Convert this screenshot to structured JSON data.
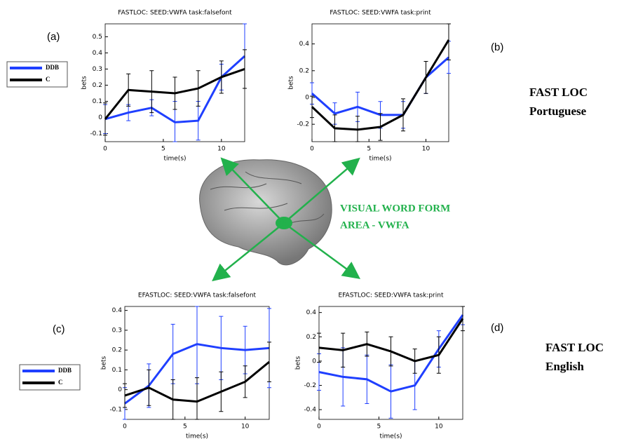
{
  "chart_data": [
    {
      "type": "line",
      "title": "FASTLOC: SEED:VWFA task:falsefont",
      "xlabel": "time(s)",
      "ylabel": "bets",
      "x": [
        0,
        2,
        4,
        6,
        8,
        10,
        12
      ],
      "xlim": [
        0,
        12
      ],
      "xticks": [
        0,
        5,
        10
      ],
      "ylim": [
        -0.15,
        0.58
      ],
      "yticks": [
        -0.1,
        0,
        0.1,
        0.2,
        0.3,
        0.4,
        0.5
      ],
      "series": [
        {
          "name": "DDB",
          "color": "#1f3fff",
          "values": [
            -0.01,
            0.03,
            0.06,
            -0.03,
            -0.02,
            0.25,
            0.38
          ],
          "errors": [
            0.09,
            0.05,
            0.05,
            0.13,
            0.12,
            0.08,
            0.2
          ]
        },
        {
          "name": "C",
          "color": "#000000",
          "values": [
            -0.01,
            0.17,
            0.16,
            0.15,
            0.18,
            0.25,
            0.3
          ],
          "errors": [
            0.1,
            0.1,
            0.13,
            0.1,
            0.11,
            0.1,
            0.12
          ]
        }
      ]
    },
    {
      "type": "line",
      "title": "FASTLOC: SEED:VWFA task:print",
      "xlabel": "time(s)",
      "ylabel": "bets",
      "x": [
        0,
        2,
        4,
        6,
        8,
        10,
        12
      ],
      "xlim": [
        0,
        12
      ],
      "xticks": [
        0,
        5,
        10
      ],
      "ylim": [
        -0.33,
        0.55
      ],
      "yticks": [
        -0.2,
        0,
        0.2,
        0.4
      ],
      "series": [
        {
          "name": "DDB",
          "color": "#1f3fff",
          "values": [
            0.03,
            -0.12,
            -0.07,
            -0.13,
            -0.13,
            0.15,
            0.3
          ],
          "errors": [
            0.08,
            0.08,
            0.11,
            0.1,
            0.1,
            0.12,
            0.12
          ]
        },
        {
          "name": "C",
          "color": "#000000",
          "values": [
            -0.07,
            -0.23,
            -0.24,
            -0.22,
            -0.13,
            0.15,
            0.43
          ],
          "errors": [
            0.08,
            0.1,
            0.1,
            0.1,
            0.12,
            0.12,
            0.15
          ]
        }
      ]
    },
    {
      "type": "line",
      "title": "EFASTLOC: SEED:VWFA task:falsefont",
      "xlabel": "time(s)",
      "ylabel": "bets",
      "x": [
        0,
        2,
        4,
        6,
        8,
        10,
        12
      ],
      "xlim": [
        0,
        12
      ],
      "xticks": [
        0,
        5,
        10
      ],
      "ylim": [
        -0.15,
        0.42
      ],
      "yticks": [
        -0.1,
        0,
        0.1,
        0.2,
        0.3,
        0.4
      ],
      "series": [
        {
          "name": "DDB",
          "color": "#1f3fff",
          "values": [
            -0.07,
            0.02,
            0.18,
            0.23,
            0.21,
            0.2,
            0.21
          ],
          "errors": [
            0.08,
            0.11,
            0.15,
            0.2,
            0.16,
            0.12,
            0.2
          ]
        },
        {
          "name": "C",
          "color": "#000000",
          "values": [
            -0.03,
            0.01,
            -0.05,
            -0.06,
            -0.01,
            0.04,
            0.14
          ],
          "errors": [
            0.06,
            0.09,
            0.1,
            0.12,
            0.1,
            0.08,
            0.1
          ]
        }
      ]
    },
    {
      "type": "line",
      "title": "EFASTLOC: SEED:VWFA task:print",
      "xlabel": "time(s)",
      "ylabel": "bets",
      "x": [
        0,
        2,
        4,
        6,
        8,
        10,
        12
      ],
      "xlim": [
        0,
        12
      ],
      "xticks": [
        0,
        5,
        10
      ],
      "ylim": [
        -0.48,
        0.45
      ],
      "yticks": [
        -0.4,
        -0.2,
        0,
        0.2,
        0.4
      ],
      "series": [
        {
          "name": "DDB",
          "color": "#1f3fff",
          "values": [
            -0.09,
            -0.13,
            -0.15,
            -0.25,
            -0.2,
            0.1,
            0.38
          ],
          "errors": [
            0.15,
            0.24,
            0.2,
            0.22,
            0.2,
            0.15,
            0.08
          ]
        },
        {
          "name": "C",
          "color": "#000000",
          "values": [
            0.11,
            0.09,
            0.14,
            0.08,
            0,
            0.05,
            0.35
          ],
          "errors": [
            0.12,
            0.14,
            0.1,
            0.12,
            0.1,
            0.15,
            0.1
          ]
        }
      ]
    }
  ],
  "panel_labels": [
    "(a)",
    "(b)",
    "(c)",
    "(d)"
  ],
  "annotations": {
    "top_group": [
      "FAST LOC",
      "Portuguese"
    ],
    "bottom_group": [
      "FAST LOC",
      "English"
    ],
    "region": [
      "VISUAL WORD FORM",
      "AREA - VWFA"
    ]
  }
}
